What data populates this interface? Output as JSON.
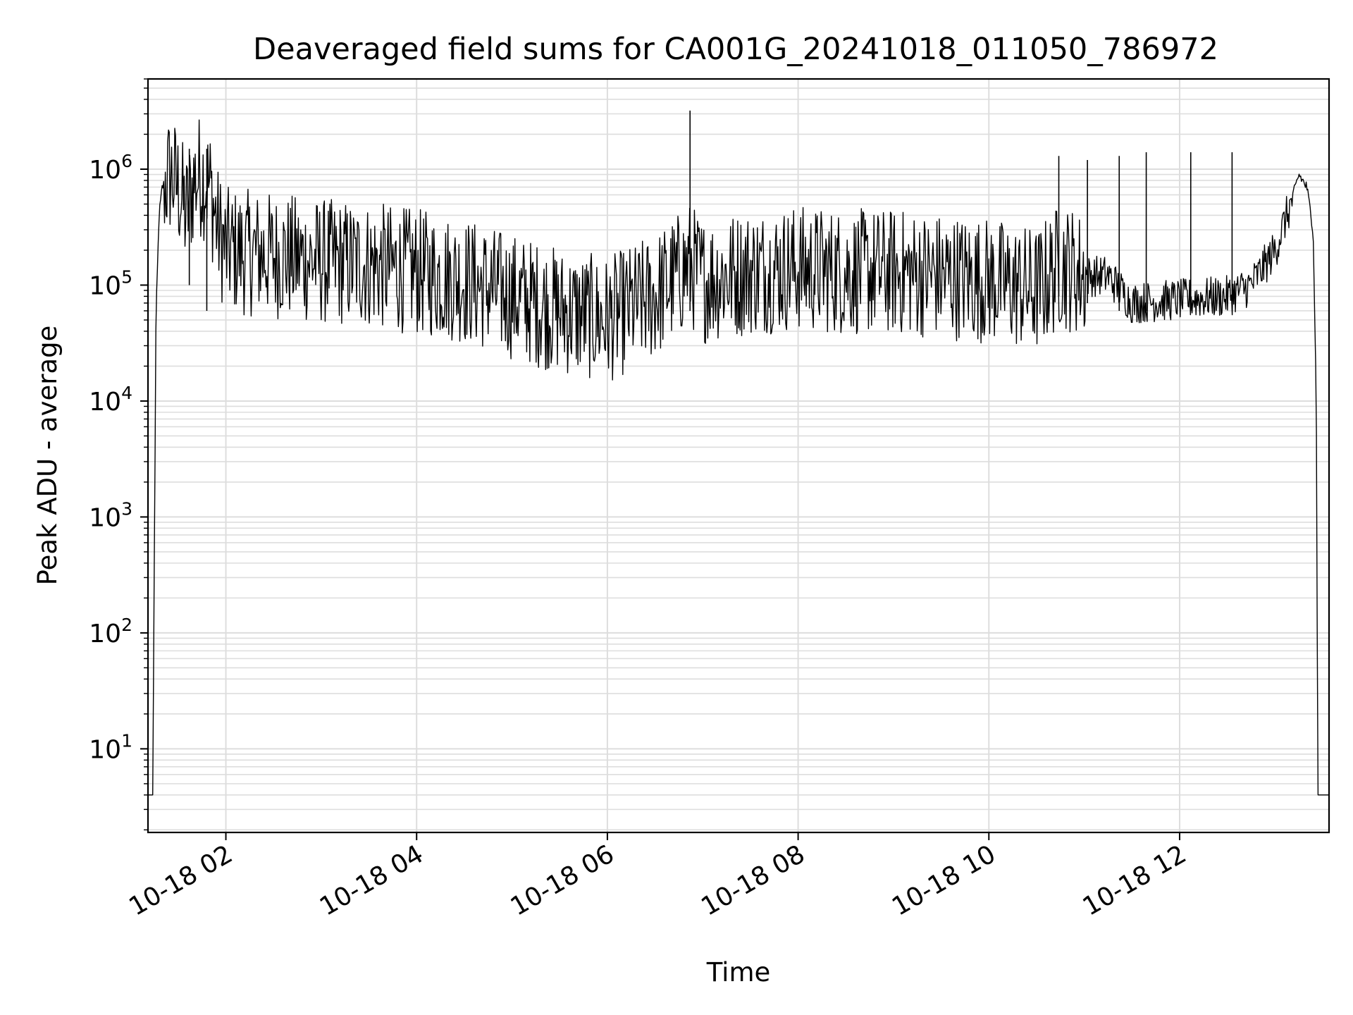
{
  "chart_data": {
    "type": "line",
    "title": "Deaveraged field sums for CA001G_20241018_011050_786972",
    "xlabel": "Time",
    "ylabel": "Peak ADU - average",
    "yscale": "log",
    "grid": true,
    "line_color": "#000000",
    "grid_color": "#dddddd",
    "xlim": [
      "2024-10-18 01:11",
      "2024-10-18 13:34"
    ],
    "ylim": [
      1.9,
      6000000
    ],
    "x_ticks": [
      {
        "time": "2024-10-18 02:00",
        "label": "10-18 02"
      },
      {
        "time": "2024-10-18 04:00",
        "label": "10-18 04"
      },
      {
        "time": "2024-10-18 06:00",
        "label": "10-18 06"
      },
      {
        "time": "2024-10-18 08:00",
        "label": "10-18 08"
      },
      {
        "time": "2024-10-18 10:00",
        "label": "10-18 10"
      },
      {
        "time": "2024-10-18 12:00",
        "label": "10-18 12"
      }
    ],
    "y_ticks": [
      {
        "value": 10,
        "base": "10",
        "exp": "1"
      },
      {
        "value": 100,
        "base": "10",
        "exp": "2"
      },
      {
        "value": 1000,
        "base": "10",
        "exp": "3"
      },
      {
        "value": 10000,
        "base": "10",
        "exp": "4"
      },
      {
        "value": 100000,
        "base": "10",
        "exp": "5"
      },
      {
        "value": 1000000,
        "base": "10",
        "exp": "6"
      }
    ],
    "series": [
      {
        "x": [
          "2024-10-18 01:11",
          "2024-10-18 01:12",
          "2024-10-18 01:13",
          "2024-10-18 01:14",
          "2024-10-18 01:16",
          "2024-10-18 01:18",
          "2024-10-18 01:20",
          "2024-10-18 01:25",
          "2024-10-18 01:30",
          "2024-10-18 01:35",
          "2024-10-18 01:40",
          "2024-10-18 01:45",
          "2024-10-18 01:50",
          "2024-10-18 01:55",
          "2024-10-18 02:00",
          "2024-10-18 02:30",
          "2024-10-18 03:00",
          "2024-10-18 03:30",
          "2024-10-18 04:00",
          "2024-10-18 04:30",
          "2024-10-18 05:00",
          "2024-10-18 05:30",
          "2024-10-18 06:00",
          "2024-10-18 06:30",
          "2024-10-18 06:52",
          "2024-10-18 07:00",
          "2024-10-18 07:30",
          "2024-10-18 08:00",
          "2024-10-18 08:30",
          "2024-10-18 09:00",
          "2024-10-18 09:30",
          "2024-10-18 10:00",
          "2024-10-18 10:30",
          "2024-10-18 10:45",
          "2024-10-18 11:00",
          "2024-10-18 11:15",
          "2024-10-18 11:30",
          "2024-10-18 12:00",
          "2024-10-18 12:30",
          "2024-10-18 12:45",
          "2024-10-18 13:00",
          "2024-10-18 13:10",
          "2024-10-18 13:15",
          "2024-10-18 13:20",
          "2024-10-18 13:24",
          "2024-10-18 13:26",
          "2024-10-18 13:27",
          "2024-10-18 13:28",
          "2024-10-18 13:30",
          "2024-10-18 13:34"
        ],
        "y": [
          4,
          4,
          4,
          4,
          50000,
          400000,
          700000,
          900000,
          700000,
          400000,
          800000,
          900000,
          700000,
          300000,
          200000,
          180000,
          160000,
          150000,
          130000,
          110000,
          80000,
          60000,
          50000,
          80000,
          150000,
          110000,
          130000,
          140000,
          130000,
          130000,
          120000,
          110000,
          90000,
          150000,
          120000,
          120000,
          70000,
          75000,
          80000,
          100000,
          200000,
          500000,
          900000,
          700000,
          300000,
          10000,
          4,
          4,
          4,
          4
        ],
        "spikes": [
          {
            "time": "2024-10-18 01:37",
            "low": 100000,
            "high": 1500000
          },
          {
            "time": "2024-10-18 01:48",
            "low": 60000,
            "high": 1500000
          },
          {
            "time": "2024-10-18 06:52",
            "low": 60000,
            "high": 3200000
          },
          {
            "time": "2024-10-18 10:44",
            "low": 80000,
            "high": 1300000
          },
          {
            "time": "2024-10-18 11:02",
            "low": 70000,
            "high": 1200000
          },
          {
            "time": "2024-10-18 11:22",
            "low": 60000,
            "high": 1300000
          },
          {
            "time": "2024-10-18 11:39",
            "low": 60000,
            "high": 1400000
          },
          {
            "time": "2024-10-18 12:07",
            "low": 60000,
            "high": 1400000
          },
          {
            "time": "2024-10-18 12:33",
            "low": 70000,
            "high": 1400000
          }
        ]
      }
    ]
  }
}
